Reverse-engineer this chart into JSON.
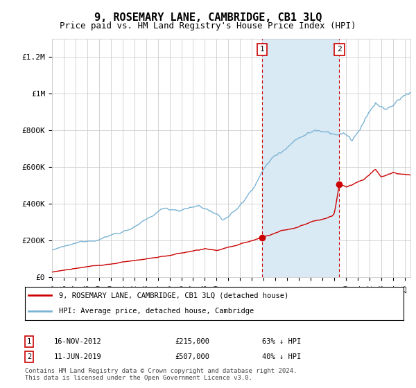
{
  "title": "9, ROSEMARY LANE, CAMBRIDGE, CB1 3LQ",
  "subtitle": "Price paid vs. HM Land Registry's House Price Index (HPI)",
  "title_fontsize": 11,
  "subtitle_fontsize": 9,
  "ylim": [
    0,
    1300000
  ],
  "yticks": [
    0,
    200000,
    400000,
    600000,
    800000,
    1000000,
    1200000
  ],
  "ytick_labels": [
    "£0",
    "£200K",
    "£400K",
    "£600K",
    "£800K",
    "£1M",
    "£1.2M"
  ],
  "background_color": "#ffffff",
  "grid_color": "#cccccc",
  "hpi_color": "#7ab3d4",
  "price_color": "#cc0000",
  "purchase1_date": 2012.88,
  "purchase1_price": 215000,
  "purchase2_date": 2019.44,
  "purchase2_price": 507000,
  "shade_color": "#daeaf5",
  "legend_line1": "9, ROSEMARY LANE, CAMBRIDGE, CB1 3LQ (detached house)",
  "legend_line2": "HPI: Average price, detached house, Cambridge",
  "note1_date": "16-NOV-2012",
  "note1_price": "£215,000",
  "note1_pct": "63% ↓ HPI",
  "note2_date": "11-JUN-2019",
  "note2_price": "£507,000",
  "note2_pct": "40% ↓ HPI",
  "footer": "Contains HM Land Registry data © Crown copyright and database right 2024.\nThis data is licensed under the Open Government Licence v3.0.",
  "xstart": 1995,
  "xend": 2025.5
}
